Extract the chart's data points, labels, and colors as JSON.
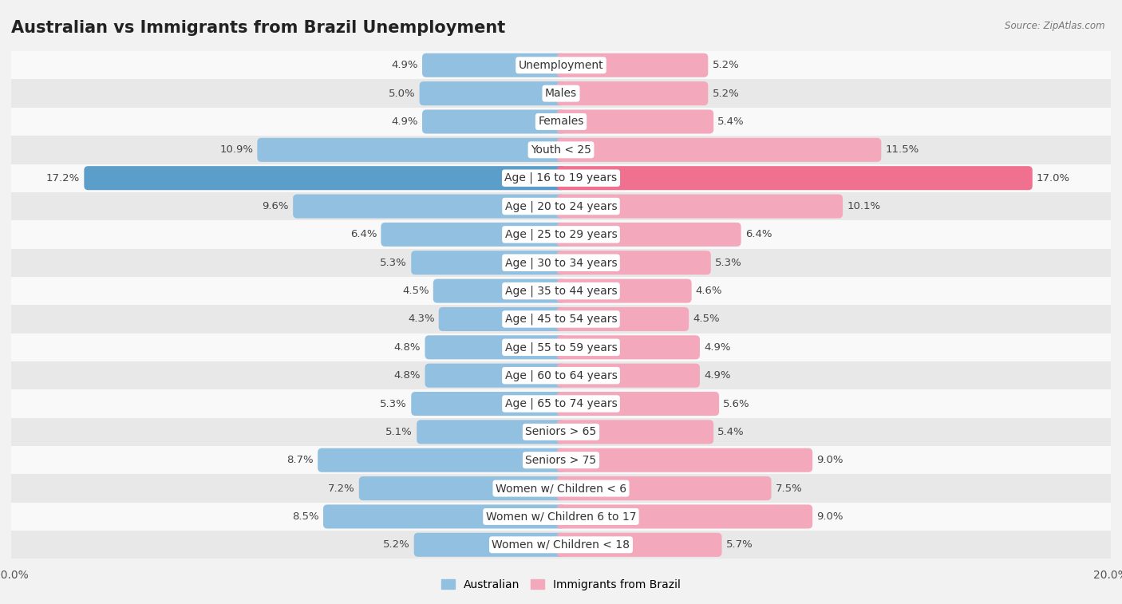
{
  "title": "Australian vs Immigrants from Brazil Unemployment",
  "source": "Source: ZipAtlas.com",
  "categories": [
    "Unemployment",
    "Males",
    "Females",
    "Youth < 25",
    "Age | 16 to 19 years",
    "Age | 20 to 24 years",
    "Age | 25 to 29 years",
    "Age | 30 to 34 years",
    "Age | 35 to 44 years",
    "Age | 45 to 54 years",
    "Age | 55 to 59 years",
    "Age | 60 to 64 years",
    "Age | 65 to 74 years",
    "Seniors > 65",
    "Seniors > 75",
    "Women w/ Children < 6",
    "Women w/ Children 6 to 17",
    "Women w/ Children < 18"
  ],
  "australian": [
    4.9,
    5.0,
    4.9,
    10.9,
    17.2,
    9.6,
    6.4,
    5.3,
    4.5,
    4.3,
    4.8,
    4.8,
    5.3,
    5.1,
    8.7,
    7.2,
    8.5,
    5.2
  ],
  "brazil": [
    5.2,
    5.2,
    5.4,
    11.5,
    17.0,
    10.1,
    6.4,
    5.3,
    4.6,
    4.5,
    4.9,
    4.9,
    5.6,
    5.4,
    9.0,
    7.5,
    9.0,
    5.7
  ],
  "australian_color": "#92c0e0",
  "brazil_color": "#f4a8bc",
  "australian_highlight_color": "#5b9ec9",
  "brazil_highlight_color": "#f07090",
  "background_color": "#f2f2f2",
  "row_bg_odd": "#f9f9f9",
  "row_bg_even": "#e8e8e8",
  "label_bg": "#ffffff",
  "max_val": 20.0,
  "title_fontsize": 15,
  "label_fontsize": 10,
  "value_fontsize": 9.5,
  "tick_fontsize": 10
}
